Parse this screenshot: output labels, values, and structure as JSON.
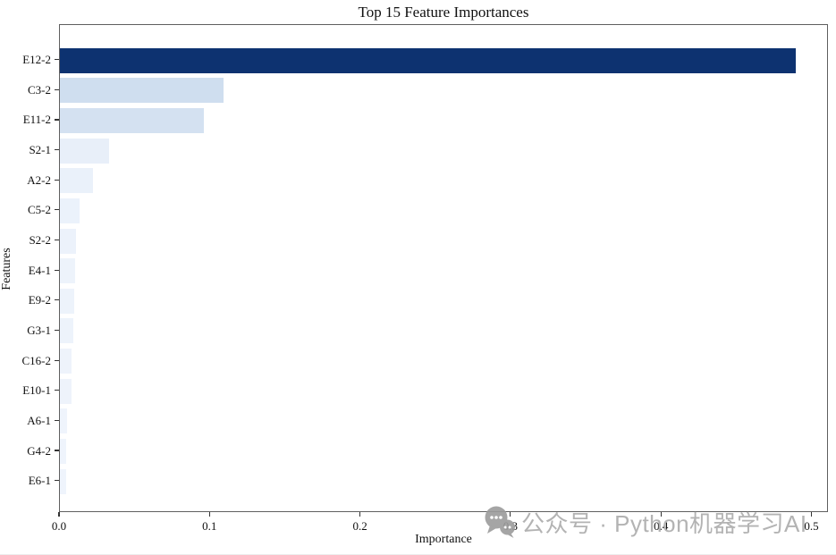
{
  "title": "Top 15 Feature Importances",
  "axes": {
    "xlabel": "Importance",
    "ylabel": "Features"
  },
  "watermark": {
    "icon": "chat-bubbles-icon",
    "text": "公众号 · Python机器学习AI",
    "color": "#b3b3b3"
  },
  "chart_data": {
    "type": "bar",
    "orientation": "horizontal",
    "title": "Top 15 Feature Importances",
    "xlabel": "Importance",
    "ylabel": "Features",
    "categories": [
      "E12-2",
      "C3-2",
      "E11-2",
      "S2-1",
      "A2-2",
      "C5-2",
      "S2-2",
      "E4-1",
      "E9-2",
      "G3-1",
      "C16-2",
      "E10-1",
      "A6-1",
      "G4-2",
      "E6-1"
    ],
    "values": [
      0.49,
      0.109,
      0.096,
      0.033,
      0.022,
      0.013,
      0.011,
      0.01,
      0.0095,
      0.009,
      0.008,
      0.008,
      0.005,
      0.004,
      0.004
    ],
    "bar_colors": [
      "#0d3270",
      "#cfdeef",
      "#d4e1f1",
      "#e8eff9",
      "#eaf1fa",
      "#ebf2fb",
      "#ecf2fb",
      "#edf3fb",
      "#edf3fb",
      "#edf3fb",
      "#eef3fb",
      "#eef3fb",
      "#eff4fc",
      "#eff4fc",
      "#eff4fc"
    ],
    "colormap": "Blues",
    "xlim": [
      0,
      0.511
    ],
    "x_ticks": [
      0.0,
      0.1,
      0.2,
      0.3,
      0.4,
      0.5
    ],
    "x_tick_labels": [
      "0.0",
      "0.1",
      "0.2",
      "0.3",
      "0.4",
      "0.5"
    ],
    "grid": false,
    "legend": null
  }
}
